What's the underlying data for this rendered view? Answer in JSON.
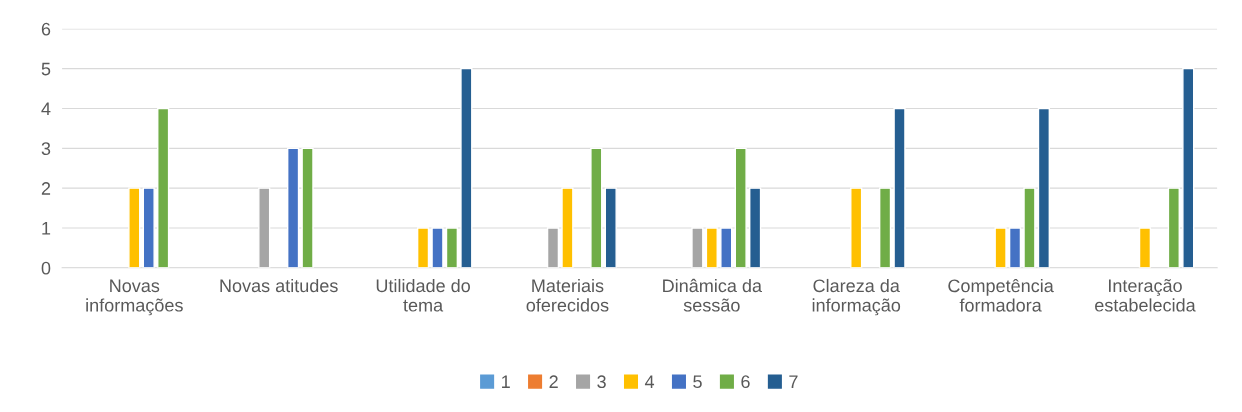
{
  "chart_data": {
    "type": "bar",
    "categories": [
      "Novas\ninformações",
      "Novas atitudes",
      "Utilidade do\ntema",
      "Materiais\noferecidos",
      "Dinâmica da\nsessão",
      "Clareza da\ninformação",
      "Competência\nformadora",
      "Interação\nestabelecida"
    ],
    "series": [
      {
        "name": "1",
        "color": "#5b9bd5",
        "values": [
          0,
          0,
          0,
          0,
          0,
          0,
          0,
          0
        ]
      },
      {
        "name": "2",
        "color": "#ed7d31",
        "values": [
          0,
          0,
          0,
          0,
          0,
          0,
          0,
          0
        ]
      },
      {
        "name": "3",
        "color": "#a5a5a5",
        "values": [
          0,
          2,
          0,
          1,
          1,
          0,
          0,
          0
        ]
      },
      {
        "name": "4",
        "color": "#ffc000",
        "values": [
          2,
          0,
          1,
          2,
          1,
          2,
          1,
          1
        ]
      },
      {
        "name": "5",
        "color": "#4472c4",
        "values": [
          2,
          3,
          1,
          0,
          1,
          0,
          1,
          0
        ]
      },
      {
        "name": "6",
        "color": "#70ad47",
        "values": [
          4,
          3,
          1,
          3,
          3,
          2,
          2,
          2
        ]
      },
      {
        "name": "7",
        "color": "#255e91",
        "values": [
          0,
          0,
          5,
          2,
          2,
          4,
          4,
          5
        ]
      }
    ],
    "ylim": [
      0,
      6
    ],
    "yticks": [
      0,
      1,
      2,
      3,
      4,
      5,
      6
    ],
    "grid": "y",
    "legend": "bottom"
  }
}
